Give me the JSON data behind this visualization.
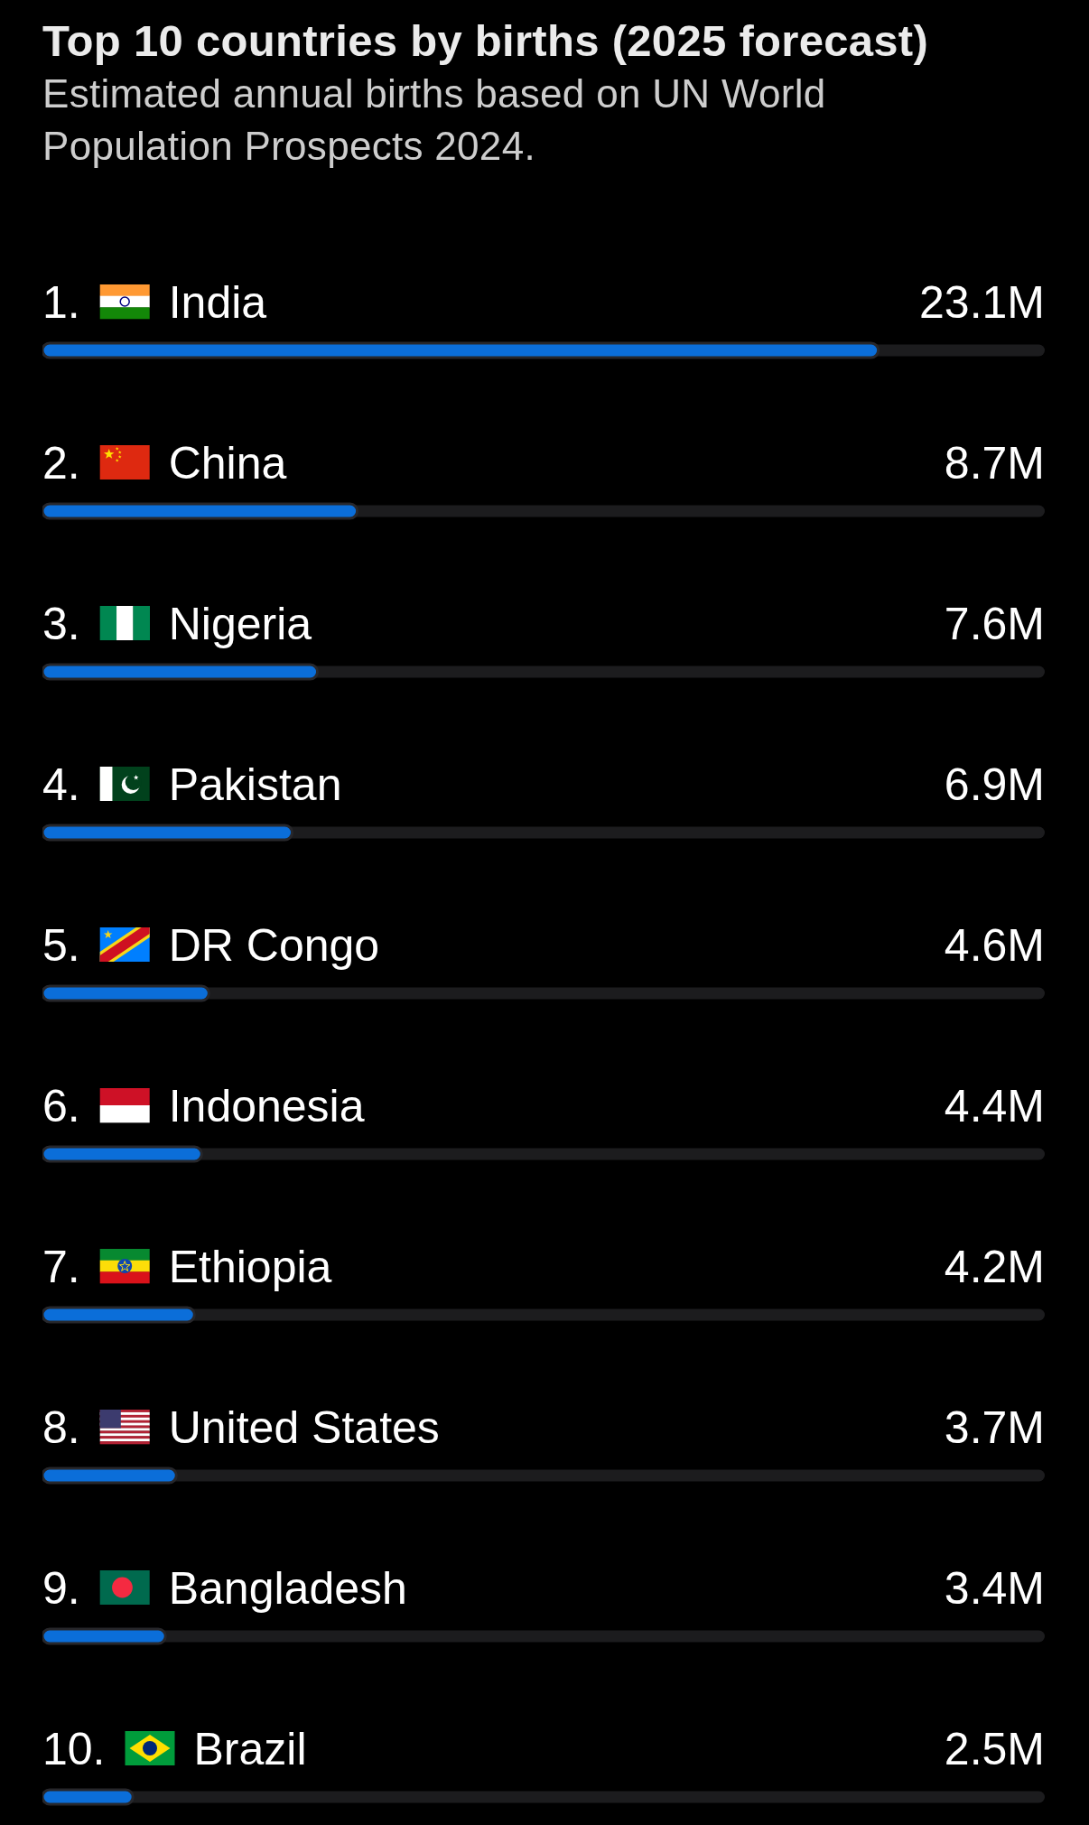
{
  "chart_data": {
    "type": "bar",
    "orientation": "horizontal",
    "title": "Top 10 countries by births (2025 forecast)",
    "subtitle": "Estimated annual births based on UN World Population Prospects 2024.",
    "categories": [
      "1. India",
      "2. China",
      "3. Nigeria",
      "4. Pakistan",
      "5. DR Congo",
      "6. Indonesia",
      "7. Ethiopia",
      "8. United States",
      "9. Bangladesh",
      "10. Brazil"
    ],
    "values": [
      23.1,
      8.7,
      7.6,
      6.9,
      4.6,
      4.4,
      4.2,
      3.7,
      3.4,
      2.5
    ],
    "value_labels": [
      "23.1M",
      "8.7M",
      "7.6M",
      "6.9M",
      "4.6M",
      "4.4M",
      "4.2M",
      "3.7M",
      "3.4M",
      "2.5M"
    ],
    "color": "#0b6ed9",
    "xlim": [
      0,
      27.7
    ],
    "tick_labels": "y"
  }
}
